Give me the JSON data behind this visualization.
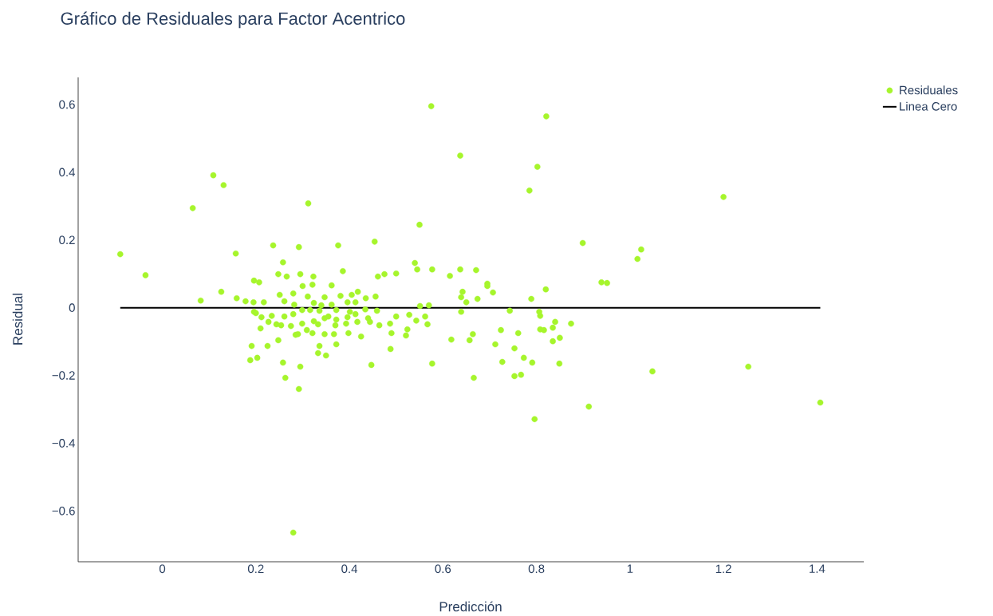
{
  "chart_data": {
    "type": "scatter",
    "title": "Gráfico de Residuales para Factor Acentrico",
    "xlabel": "Predicción",
    "ylabel": "Residual",
    "xlim": [
      -0.18,
      1.5
    ],
    "ylim": [
      -0.75,
      0.68
    ],
    "xticks": [
      0,
      0.2,
      0.4,
      0.6,
      0.8,
      1,
      1.2,
      1.4
    ],
    "yticks": [
      {
        "value": -0.6,
        "label": "−0.6"
      },
      {
        "value": -0.4,
        "label": "−0.4"
      },
      {
        "value": -0.2,
        "label": "−0.2"
      },
      0,
      0.2,
      0.4,
      0.6
    ],
    "legend": "top right",
    "series": [
      {
        "name": "Residuales",
        "color": "#a6f52c",
        "marker": "circle",
        "x": [
          -0.09,
          -0.036,
          0.065,
          0.082,
          0.109,
          0.131,
          0.126,
          0.157,
          0.159,
          0.237,
          0.258,
          0.248,
          0.266,
          0.196,
          0.207,
          0.251,
          0.28,
          0.178,
          0.195,
          0.217,
          0.261,
          0.196,
          0.2,
          0.212,
          0.234,
          0.227,
          0.244,
          0.254,
          0.261,
          0.275,
          0.28,
          0.21,
          0.285,
          0.248,
          0.191,
          0.225,
          0.188,
          0.203,
          0.258,
          0.263,
          0.292,
          0.295,
          0.28,
          0.312,
          0.292,
          0.376,
          0.454,
          0.295,
          0.323,
          0.321,
          0.3,
          0.362,
          0.386,
          0.311,
          0.347,
          0.381,
          0.405,
          0.418,
          0.435,
          0.456,
          0.324,
          0.34,
          0.362,
          0.396,
          0.413,
          0.282,
          0.299,
          0.316,
          0.336,
          0.372,
          0.401,
          0.434,
          0.459,
          0.347,
          0.355,
          0.372,
          0.396,
          0.413,
          0.44,
          0.324,
          0.333,
          0.299,
          0.37,
          0.393,
          0.417,
          0.444,
          0.464,
          0.309,
          0.29,
          0.321,
          0.347,
          0.367,
          0.398,
          0.425,
          0.372,
          0.336,
          0.333,
          0.35,
          0.447,
          0.5,
          0.461,
          0.475,
          0.54,
          0.545,
          0.577,
          0.615,
          0.637,
          0.671,
          0.642,
          0.639,
          0.65,
          0.674,
          0.551,
          0.57,
          0.5,
          0.528,
          0.543,
          0.562,
          0.567,
          0.487,
          0.49,
          0.524,
          0.521,
          0.488,
          0.577,
          0.639,
          0.618,
          0.664,
          0.657,
          0.666,
          0.55,
          0.575,
          0.637,
          0.695,
          0.695,
          0.707,
          0.82,
          0.789,
          1.016,
          0.939,
          0.951,
          0.743,
          0.806,
          0.808,
          0.84,
          0.835,
          0.808,
          0.816,
          0.874,
          0.724,
          0.761,
          0.85,
          0.835,
          0.712,
          0.753,
          0.727,
          0.773,
          0.791,
          0.849,
          0.753,
          0.767,
          1.048,
          0.821,
          0.802,
          0.785,
          0.899,
          1.024,
          1.2,
          0.796,
          0.912,
          1.253,
          1.407
        ],
        "values": [
          0.158,
          0.096,
          0.294,
          0.021,
          0.391,
          0.362,
          0.047,
          0.16,
          0.028,
          0.184,
          0.134,
          0.099,
          0.092,
          0.08,
          0.075,
          0.038,
          0.042,
          0.019,
          0.016,
          0.016,
          0.019,
          -0.012,
          -0.016,
          -0.028,
          -0.024,
          -0.042,
          -0.049,
          -0.052,
          -0.026,
          -0.054,
          -0.019,
          -0.061,
          -0.08,
          -0.096,
          -0.113,
          -0.113,
          -0.155,
          -0.148,
          -0.162,
          -0.207,
          -0.24,
          -0.174,
          -0.664,
          0.308,
          0.179,
          0.184,
          0.195,
          0.099,
          0.092,
          0.068,
          0.064,
          0.066,
          0.108,
          0.033,
          0.031,
          0.035,
          0.038,
          0.047,
          0.028,
          0.033,
          0.014,
          0.007,
          0.009,
          0.016,
          0.016,
          0.009,
          -0.007,
          -0.007,
          -0.009,
          -0.007,
          -0.012,
          -0.005,
          -0.009,
          -0.031,
          -0.026,
          -0.035,
          -0.028,
          -0.019,
          -0.031,
          -0.04,
          -0.049,
          -0.047,
          -0.052,
          -0.047,
          -0.042,
          -0.042,
          -0.052,
          -0.066,
          -0.078,
          -0.075,
          -0.078,
          -0.078,
          -0.075,
          -0.085,
          -0.108,
          -0.113,
          -0.134,
          -0.141,
          -0.169,
          0.101,
          0.092,
          0.099,
          0.132,
          0.113,
          0.113,
          0.094,
          0.113,
          0.111,
          0.047,
          0.031,
          0.016,
          0.026,
          0.005,
          0.007,
          -0.026,
          -0.021,
          -0.038,
          -0.026,
          -0.049,
          -0.047,
          -0.075,
          -0.064,
          -0.082,
          -0.122,
          -0.165,
          -0.012,
          -0.094,
          -0.078,
          -0.096,
          -0.207,
          0.245,
          0.595,
          0.449,
          0.071,
          0.064,
          0.045,
          0.054,
          0.026,
          0.144,
          0.075,
          0.073,
          -0.009,
          -0.012,
          -0.024,
          -0.042,
          -0.059,
          -0.064,
          -0.066,
          -0.047,
          -0.066,
          -0.075,
          -0.089,
          -0.099,
          -0.108,
          -0.12,
          -0.16,
          -0.148,
          -0.162,
          -0.165,
          -0.202,
          -0.198,
          -0.188,
          0.565,
          0.416,
          0.346,
          0.191,
          0.172,
          0.327,
          -0.329,
          -0.292,
          -0.174,
          -0.28
        ]
      },
      {
        "name": "Linea Cero",
        "type": "line",
        "color": "#000000",
        "marker": "none",
        "line_style": "solid",
        "x": [
          -0.09,
          1.407
        ],
        "values": [
          0,
          0
        ]
      }
    ]
  }
}
